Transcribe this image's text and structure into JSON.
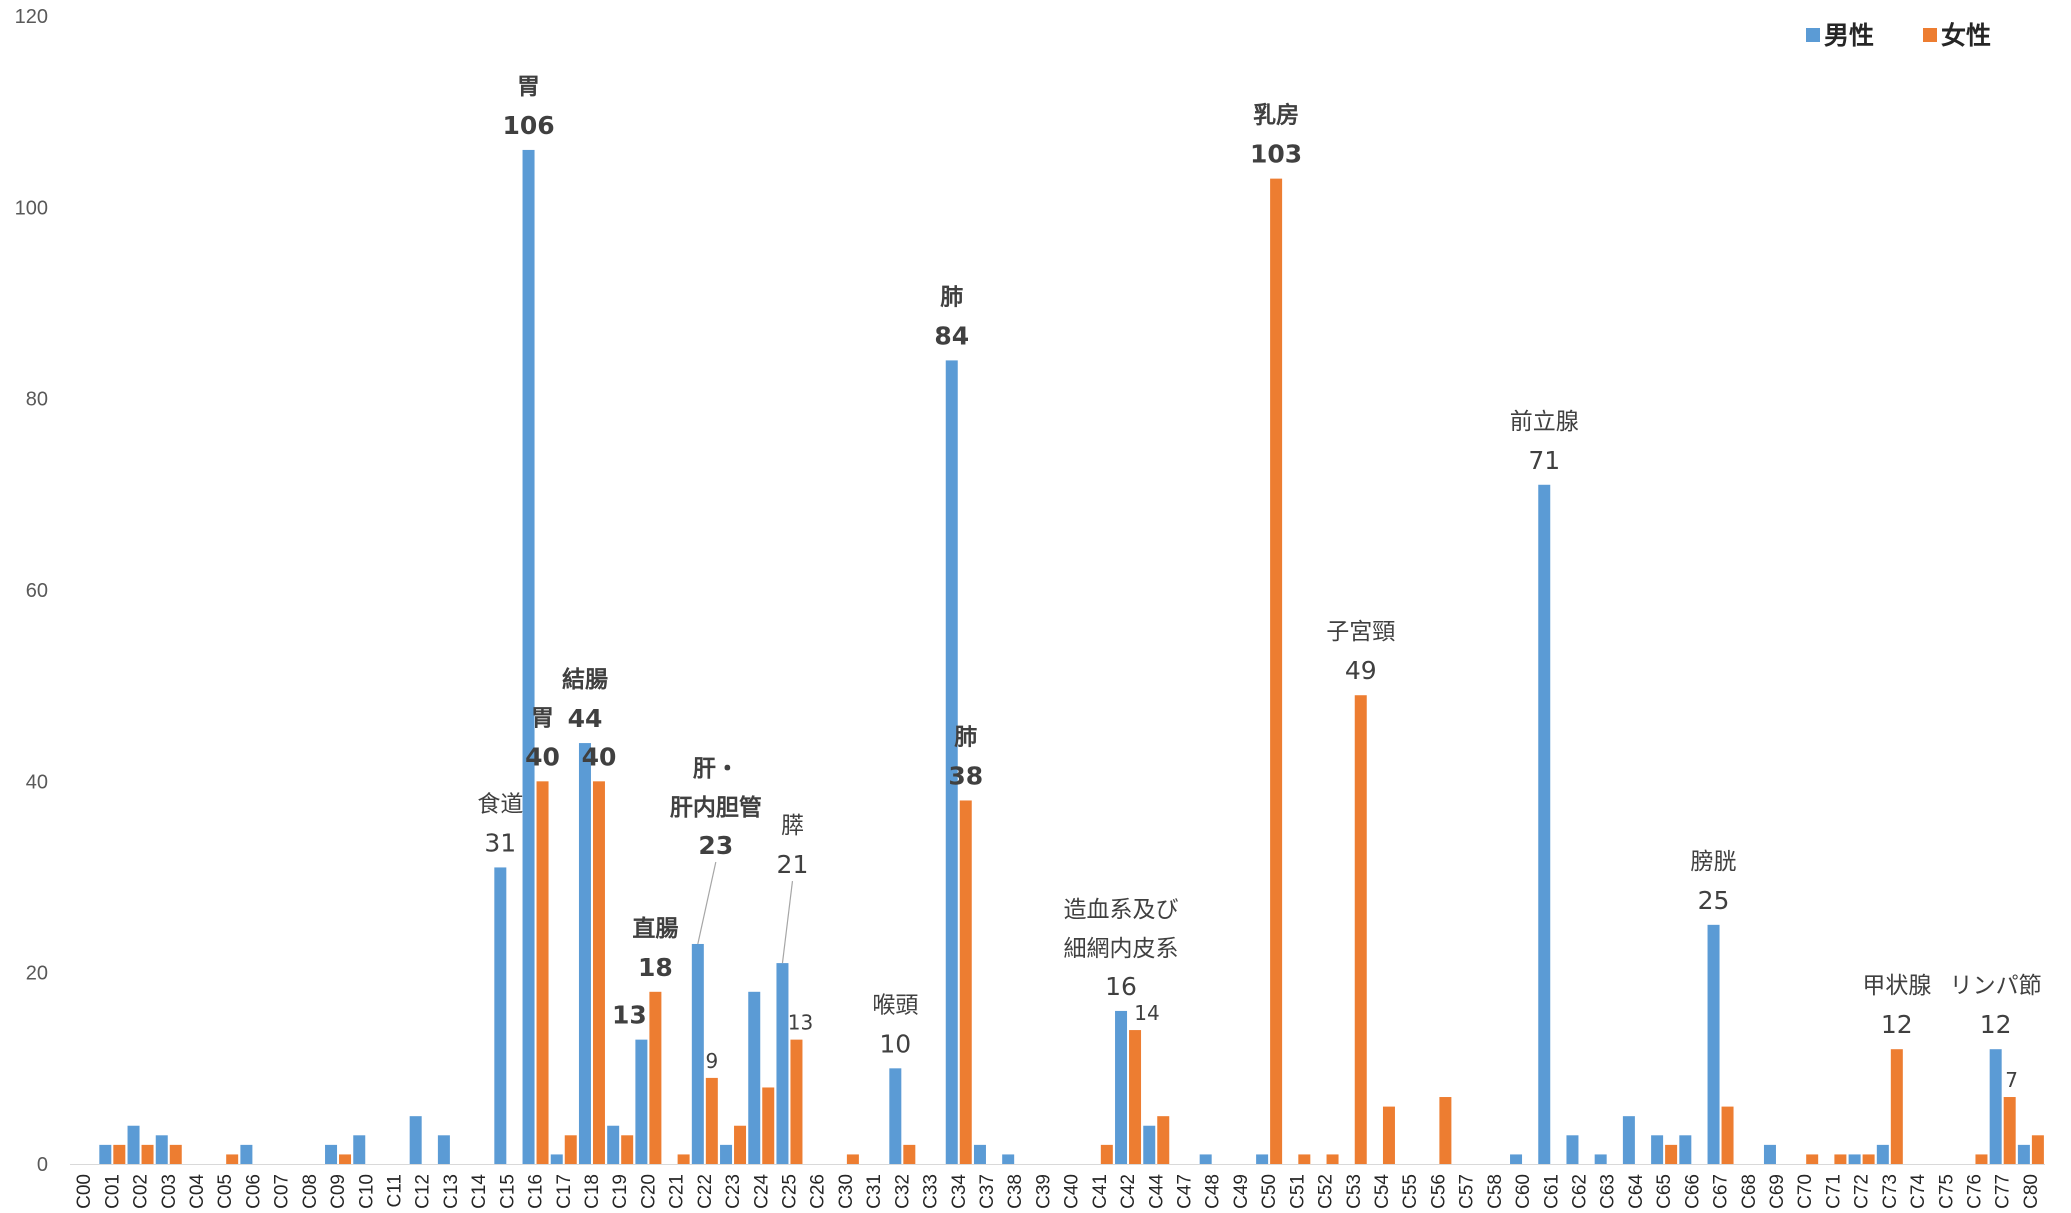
{
  "chart_data": {
    "type": "bar",
    "title": "",
    "xlabel": "",
    "ylabel": "",
    "ylim": [
      0,
      120
    ],
    "yticks": [
      0,
      20,
      40,
      60,
      80,
      100,
      120
    ],
    "grid": false,
    "legend_position": "top-right",
    "categories": [
      "C00",
      "C01",
      "C02",
      "C03",
      "C04",
      "C05",
      "C06",
      "C07",
      "C08",
      "C09",
      "C10",
      "C11",
      "C12",
      "C13",
      "C14",
      "C15",
      "C16",
      "C17",
      "C18",
      "C19",
      "C20",
      "C21",
      "C22",
      "C23",
      "C24",
      "C25",
      "C26",
      "C30",
      "C31",
      "C32",
      "C33",
      "C34",
      "C37",
      "C38",
      "C39",
      "C40",
      "C41",
      "C42",
      "C44",
      "C47",
      "C48",
      "C49",
      "C50",
      "C51",
      "C52",
      "C53",
      "C54",
      "C55",
      "C56",
      "C57",
      "C58",
      "C60",
      "C61",
      "C62",
      "C63",
      "C64",
      "C65",
      "C66",
      "C67",
      "C68",
      "C69",
      "C70",
      "C71",
      "C72",
      "C73",
      "C74",
      "C75",
      "C76",
      "C77",
      "C80"
    ],
    "series": [
      {
        "name": "男性",
        "color": "#5B9BD5",
        "values": [
          0,
          2,
          4,
          3,
          0,
          0,
          2,
          0,
          0,
          2,
          3,
          0,
          5,
          3,
          0,
          31,
          106,
          1,
          44,
          4,
          13,
          0,
          23,
          2,
          18,
          21,
          0,
          0,
          0,
          10,
          0,
          84,
          2,
          1,
          0,
          0,
          0,
          16,
          4,
          0,
          1,
          0,
          1,
          0,
          0,
          0,
          0,
          0,
          0,
          0,
          0,
          1,
          71,
          3,
          1,
          5,
          3,
          3,
          25,
          0,
          2,
          0,
          0,
          1,
          2,
          0,
          0,
          0,
          12,
          2
        ]
      },
      {
        "name": "女性",
        "color": "#ED7D31",
        "values": [
          0,
          2,
          2,
          2,
          0,
          1,
          0,
          0,
          0,
          1,
          0,
          0,
          0,
          0,
          0,
          0,
          40,
          3,
          40,
          3,
          18,
          1,
          9,
          4,
          8,
          13,
          0,
          1,
          0,
          2,
          0,
          38,
          0,
          0,
          0,
          0,
          2,
          14,
          5,
          0,
          0,
          0,
          103,
          1,
          1,
          49,
          6,
          0,
          7,
          0,
          0,
          0,
          0,
          0,
          0,
          0,
          2,
          0,
          6,
          0,
          0,
          1,
          1,
          1,
          12,
          0,
          0,
          1,
          7,
          3
        ]
      }
    ],
    "annotations": [
      {
        "category": "C15",
        "series": 0,
        "label": "食道",
        "value": "31",
        "bold": false
      },
      {
        "category": "C16",
        "series": 0,
        "label": "胃",
        "value": "106",
        "bold": true
      },
      {
        "category": "C16",
        "series": 1,
        "label": "胃",
        "value": "40",
        "bold": true
      },
      {
        "category": "C18",
        "series": 0,
        "label": "結腸",
        "value": "44",
        "bold": true
      },
      {
        "category": "C18",
        "series": 1,
        "label": "",
        "value": "40",
        "bold": true
      },
      {
        "category": "C20",
        "series": 0,
        "label": "",
        "value": "13",
        "bold": true
      },
      {
        "category": "C20",
        "series": 1,
        "label": "直腸",
        "value": "18",
        "bold": true
      },
      {
        "category": "C22",
        "series": 0,
        "label": "肝・",
        "label2": "肝内胆管",
        "value": "23",
        "bold": true
      },
      {
        "category": "C22",
        "series": 1,
        "label": "",
        "value": "9",
        "bold": false
      },
      {
        "category": "C25",
        "series": 0,
        "label": "膵",
        "value": "21",
        "bold": false
      },
      {
        "category": "C25",
        "series": 1,
        "label": "",
        "value": "13",
        "bold": false
      },
      {
        "category": "C32",
        "series": 0,
        "label": "喉頭",
        "value": "10",
        "bold": false
      },
      {
        "category": "C34",
        "series": 0,
        "label": "肺",
        "value": "84",
        "bold": true
      },
      {
        "category": "C34",
        "series": 1,
        "label": "肺",
        "value": "38",
        "bold": true
      },
      {
        "category": "C42",
        "series": 0,
        "label": "造血系及び",
        "label2": "細網内皮系",
        "value": "16",
        "bold": false
      },
      {
        "category": "C42",
        "series": 1,
        "label": "",
        "value": "14",
        "bold": false
      },
      {
        "category": "C50",
        "series": 1,
        "label": "乳房",
        "value": "103",
        "bold": true
      },
      {
        "category": "C53",
        "series": 1,
        "label": "子宮頸",
        "value": "49",
        "bold": false
      },
      {
        "category": "C61",
        "series": 0,
        "label": "前立腺",
        "value": "71",
        "bold": false
      },
      {
        "category": "C67",
        "series": 0,
        "label": "膀胱",
        "value": "25",
        "bold": false
      },
      {
        "category": "C73",
        "series": 1,
        "label": "甲状腺",
        "value": "12",
        "bold": false
      },
      {
        "category": "C77",
        "series": 0,
        "label": "リンパ節",
        "value": "12",
        "bold": false
      },
      {
        "category": "C77",
        "series": 1,
        "label": "",
        "value": "7",
        "bold": false
      }
    ]
  }
}
